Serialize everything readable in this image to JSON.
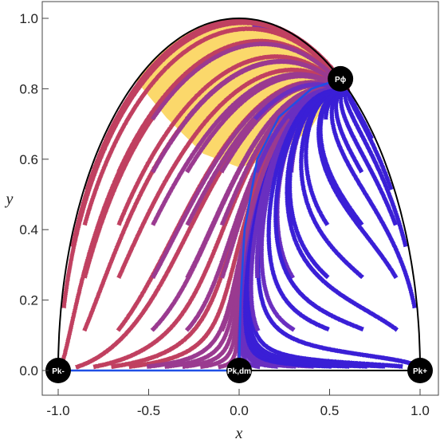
{
  "chart_data": {
    "type": "streamplot",
    "xlabel": "x",
    "ylabel": "y",
    "xlim": [
      -1.05,
      1.05
    ],
    "ylim": [
      -0.06,
      1.04
    ],
    "x_ticks": [
      "-1.0",
      "-0.5",
      "0.0",
      "0.5",
      "1.0"
    ],
    "x_tick_values": [
      -1.0,
      -0.5,
      0.0,
      0.5,
      1.0
    ],
    "y_ticks": [
      "0.0",
      "0.2",
      "0.4",
      "0.6",
      "0.8",
      "1.0"
    ],
    "y_tick_values": [
      0.0,
      0.2,
      0.4,
      0.6,
      0.8,
      1.0
    ],
    "boundary": "x^2 + y^2 = 1 (upper half), y = 0",
    "accelerated_region": {
      "description": "shaded region of accelerated expansion",
      "color": "#fbd86b",
      "lower_edge_points": [
        [
          -0.57,
          0.8238
        ],
        [
          -0.4,
          0.717
        ],
        [
          -0.2,
          0.616
        ],
        [
          0.0,
          0.577
        ],
        [
          0.2,
          0.604
        ],
        [
          0.4,
          0.69
        ],
        [
          0.56,
          0.8283
        ]
      ]
    },
    "critical_points": [
      {
        "label": "Pk-",
        "x": -1.0,
        "y": 0.0
      },
      {
        "label": "Pk,dm",
        "x": 0.0,
        "y": 0.0
      },
      {
        "label": "Pk+",
        "x": 1.0,
        "y": 0.0
      },
      {
        "label": "Pϕ",
        "x": 0.56,
        "y": 0.8283
      }
    ],
    "highlighted_trajectories": [
      {
        "name": "",
        "color": "#1f4fe6",
        "points": [
          [
            -1.0,
            0.0
          ],
          [
            0.0,
            0.0
          ]
        ]
      },
      {
        "name": "",
        "color": "#1f4fe6",
        "points": [
          [
            0.0,
            0.0
          ],
          [
            0.008,
            0.2
          ],
          [
            0.03,
            0.4
          ],
          [
            0.1,
            0.6
          ],
          [
            0.22,
            0.72
          ],
          [
            0.4,
            0.8
          ],
          [
            0.56,
            0.8283
          ]
        ]
      }
    ],
    "stream_colors": [
      "#3a1fd6",
      "#6a2fc0",
      "#9a3a90",
      "#c04060"
    ],
    "grid": false
  }
}
